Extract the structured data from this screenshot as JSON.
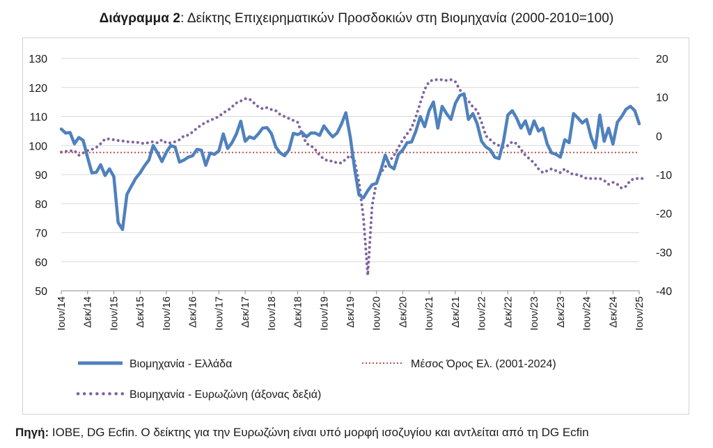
{
  "title": {
    "prefix": "Διάγραμμα 2",
    "text": ": Δείκτης Επιχειρηματικών Προσδοκιών στη Βιομηχανία (2000-2010=100)"
  },
  "source": {
    "label": "Πηγή:",
    "text": " ΙΟΒΕ, DG Ecfin. Ο δείκτης για την Ευρωζώνη είναι υπό μορφή ισοζυγίου και αντλείται από τη DG Ecfin"
  },
  "chart_data": {
    "type": "line",
    "x_start": "2014-06",
    "x_end": "2025-06",
    "x_tick_labels": [
      "Ιουν/14",
      "Δεκ/14",
      "Ιουν/15",
      "Δεκ/15",
      "Ιουν/16",
      "Δεκ/16",
      "Ιουν/17",
      "Δεκ/17",
      "Ιουν/18",
      "Δεκ/18",
      "Ιουν/19",
      "Δεκ/19",
      "Ιουν/20",
      "Δεκ/20",
      "Ιουν/21",
      "Δεκ/21",
      "Ιουν/22",
      "Δεκ/22",
      "Ιουν/23",
      "Δεκ/23",
      "Ιουν/24",
      "Δεκ/24",
      "Ιουν/25"
    ],
    "y_left": {
      "min": 50,
      "max": 130,
      "ticks": [
        50,
        60,
        70,
        80,
        90,
        100,
        110,
        120,
        130
      ]
    },
    "y_right": {
      "min": -40,
      "max": 20,
      "ticks": [
        -40,
        -30,
        -20,
        -10,
        0,
        10,
        20
      ]
    },
    "series": [
      {
        "name": "Βιομηχανία  - Ελλάδα",
        "axis": "left",
        "color": "#4f81bd",
        "style": "solid",
        "values": [
          105.7,
          104.3,
          104.5,
          100.6,
          102.8,
          101.8,
          96.0,
          90.6,
          90.8,
          93.4,
          89.7,
          92.0,
          89.3,
          73.5,
          71.1,
          83.2,
          86.0,
          88.7,
          90.6,
          93.0,
          95.0,
          100.0,
          97.5,
          94.5,
          97.7,
          100.0,
          99.5,
          94.3,
          95.0,
          96.0,
          96.5,
          98.7,
          98.4,
          93.2,
          97.4,
          97.0,
          98.2,
          104.0,
          99.0,
          101.0,
          104.0,
          108.4,
          101.5,
          103.0,
          102.4,
          104.0,
          106.0,
          106.2,
          104.1,
          99.5,
          97.5,
          96.5,
          98.5,
          104.2,
          103.8,
          104.5,
          103.0,
          104.3,
          104.3,
          103.5,
          106.8,
          104.7,
          103.0,
          104.3,
          107.4,
          111.3,
          103.0,
          92.0,
          83.0,
          82.0,
          84.5,
          86.5,
          87.0,
          91.5,
          96.7,
          93.0,
          92.0,
          97.0,
          98.5,
          101.0,
          101.2,
          105.0,
          110.0,
          106.5,
          112.0,
          115.0,
          106.0,
          113.5,
          111.0,
          109.0,
          114.5,
          117.2,
          117.8,
          109.0,
          111.0,
          107.5,
          101.5,
          99.5,
          98.5,
          96.0,
          95.5,
          101.5,
          110.5,
          112.0,
          109.5,
          106.0,
          108.5,
          104.0,
          108.5,
          105.0,
          106.0,
          100.5,
          97.5,
          97.0,
          96.0,
          102.0,
          101.0,
          111.0,
          109.5,
          107.8,
          109.0,
          103.0,
          99.2,
          110.5,
          101.5,
          106.0,
          100.5,
          108.0,
          110.0,
          112.5,
          113.5,
          112.0,
          107.5
        ]
      },
      {
        "name": "Μέσος Όρος Ελ. (2001-2024)",
        "axis": "left",
        "color": "#c0504d",
        "style": "dotted",
        "values": [
          97.6
        ]
      },
      {
        "name": "Βιομηχανία - Ευρωζώνη (άξονας δεξιά)",
        "axis": "right",
        "color": "#8064a2",
        "style": "dotted",
        "values": [
          -4.2,
          -4.0,
          -3.9,
          -3.8,
          -5.0,
          -4.4,
          -3.8,
          -3.5,
          -3.0,
          -2.0,
          -0.8,
          -0.8,
          -1.0,
          -1.2,
          -1.3,
          -1.5,
          -1.6,
          -1.6,
          -1.8,
          -2.0,
          -1.7,
          -1.5,
          -1.8,
          -1.0,
          -1.8,
          -1.8,
          -1.5,
          -1.0,
          0.0,
          0.2,
          1.0,
          2.0,
          2.8,
          3.5,
          4.0,
          4.5,
          5.0,
          6.0,
          6.5,
          7.5,
          8.5,
          9.0,
          9.6,
          9.5,
          8.5,
          7.5,
          7.0,
          7.3,
          6.8,
          6.5,
          5.5,
          5.0,
          4.5,
          4.0,
          3.5,
          0.5,
          -2.0,
          -2.5,
          -3.5,
          -5.0,
          -6.0,
          -6.5,
          -6.5,
          -7.0,
          -7.0,
          -6.0,
          -5.0,
          -6.5,
          -12.0,
          -21.0,
          -36.0,
          -18.0,
          -12.0,
          -9.5,
          -8.0,
          -6.5,
          -5.0,
          -3.0,
          -1.0,
          0.5,
          2.0,
          5.0,
          8.5,
          12.0,
          14.0,
          14.5,
          14.5,
          14.5,
          14.3,
          14.5,
          14.0,
          12.0,
          10.0,
          9.0,
          7.5,
          6.5,
          3.5,
          0.0,
          -1.0,
          -2.0,
          -2.5,
          -3.0,
          -2.5,
          -1.5,
          -2.0,
          -3.5,
          -5.0,
          -6.0,
          -7.0,
          -8.5,
          -9.5,
          -9.0,
          -8.5,
          -9.0,
          -9.5,
          -8.5,
          -9.5,
          -10.0,
          -10.0,
          -10.5,
          -11.0,
          -11.0,
          -11.0,
          -11.0,
          -11.5,
          -12.5,
          -12.0,
          -12.5,
          -13.5,
          -13.0,
          -11.5,
          -11.0,
          -11.0,
          -11.0
        ]
      }
    ]
  }
}
